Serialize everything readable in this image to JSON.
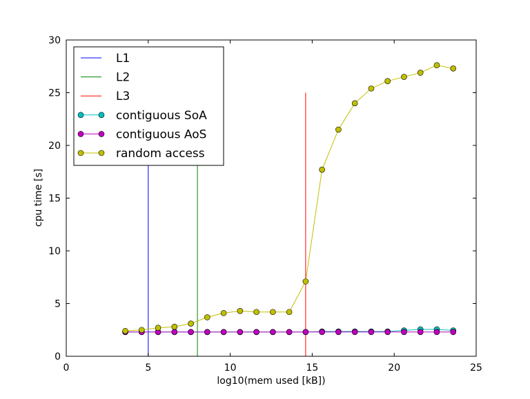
{
  "chart_data": {
    "type": "line",
    "title": "",
    "xlabel": "log10(mem used [kB])",
    "ylabel": "cpu time [s]",
    "xlim": [
      0,
      25
    ],
    "ylim": [
      0,
      30
    ],
    "xticks": [
      0,
      5,
      10,
      15,
      20,
      25
    ],
    "yticks": [
      0,
      5,
      10,
      15,
      20,
      25,
      30
    ],
    "legend_position": "top-left",
    "vlines": [
      {
        "name": "L1",
        "x": 5.0,
        "ymax": 25,
        "color": "#0000ff"
      },
      {
        "name": "L2",
        "x": 8.0,
        "ymax": 25,
        "color": "#008000"
      },
      {
        "name": "L3",
        "x": 14.6,
        "ymax": 25,
        "color": "#ff0000"
      }
    ],
    "x": [
      3.6,
      4.6,
      5.6,
      6.6,
      7.6,
      8.6,
      9.6,
      10.6,
      11.6,
      12.6,
      13.6,
      14.6,
      15.6,
      16.6,
      17.6,
      18.6,
      19.6,
      20.6,
      21.6,
      22.6,
      23.6
    ],
    "series": [
      {
        "name": "contiguous SoA",
        "color": "#00bfbf",
        "values": [
          2.3,
          2.3,
          2.3,
          2.3,
          2.3,
          2.3,
          2.3,
          2.3,
          2.3,
          2.3,
          2.3,
          2.3,
          2.35,
          2.35,
          2.35,
          2.35,
          2.35,
          2.45,
          2.55,
          2.55,
          2.45
        ]
      },
      {
        "name": "contiguous AoS",
        "color": "#bf00bf",
        "values": [
          2.3,
          2.3,
          2.3,
          2.3,
          2.3,
          2.3,
          2.3,
          2.3,
          2.3,
          2.3,
          2.3,
          2.3,
          2.3,
          2.3,
          2.3,
          2.3,
          2.3,
          2.3,
          2.3,
          2.3,
          2.3
        ]
      },
      {
        "name": "random access",
        "color": "#bfbf00",
        "values": [
          2.4,
          2.5,
          2.7,
          2.8,
          3.1,
          3.7,
          4.1,
          4.3,
          4.2,
          4.2,
          4.2,
          7.1,
          17.7,
          21.5,
          24.0,
          25.4,
          26.1,
          26.5,
          26.9,
          27.6,
          27.3
        ]
      }
    ]
  }
}
